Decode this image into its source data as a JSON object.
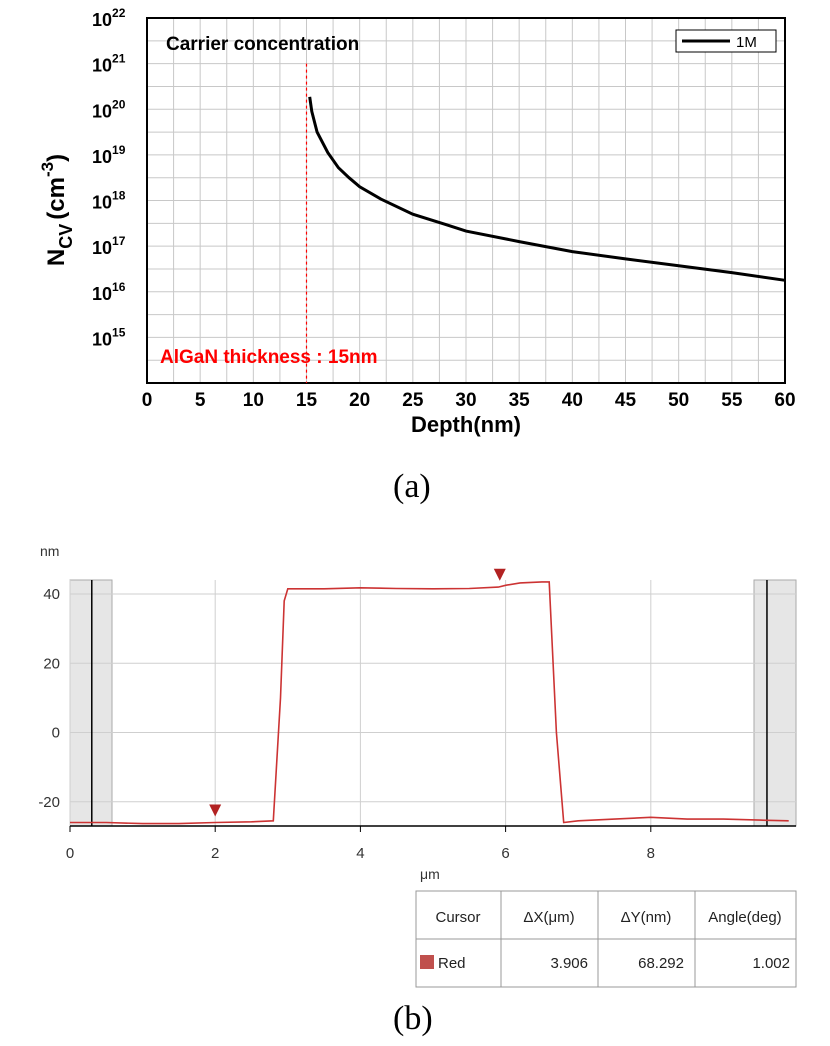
{
  "chart_data": [
    {
      "panel": "(a)",
      "type": "line",
      "title": "Carrier concentration",
      "xlabel": "Depth(nm)",
      "ylabel_main": "N",
      "ylabel_sub": "CV",
      "ylabel_unit": "(cm",
      "ylabel_exp": "-3",
      "ylabel_close": ")",
      "y_scale": "log",
      "xlim": [
        0,
        60
      ],
      "ylim_exp": [
        14,
        22
      ],
      "x_ticks": [
        "0",
        "5",
        "10",
        "15",
        "20",
        "25",
        "30",
        "35",
        "40",
        "45",
        "50",
        "55",
        "60"
      ],
      "y_tick_exponents": [
        "15",
        "16",
        "17",
        "18",
        "19",
        "20",
        "21",
        "22"
      ],
      "y_tick_base": "10",
      "grid": true,
      "legend_position": "top-right",
      "series": [
        {
          "name": "1M",
          "color": "#000000",
          "x": [
            15.3,
            15.5,
            16,
            17,
            18,
            19,
            20,
            22,
            25,
            28,
            30,
            35,
            40,
            45,
            50,
            55,
            60
          ],
          "log10_y": [
            20.27,
            19.95,
            19.5,
            19.05,
            18.72,
            18.5,
            18.3,
            18.03,
            17.7,
            17.48,
            17.33,
            17.1,
            16.88,
            16.72,
            16.57,
            16.42,
            16.25
          ]
        }
      ],
      "annotation": {
        "text": "AlGaN thickness : 15nm",
        "x": 15,
        "color": "#ff0000"
      }
    },
    {
      "panel": "(b)",
      "type": "line",
      "unit_y": "nm",
      "unit_x": "μm",
      "xlim": [
        0,
        10
      ],
      "ylim": [
        -27,
        45
      ],
      "x_ticks": [
        "0",
        "2",
        "4",
        "6",
        "8"
      ],
      "y_ticks": [
        "40",
        "20",
        "0",
        "-20"
      ],
      "grid": true,
      "cursor_lines_x": [
        0.3,
        9.6
      ],
      "cursor_markers_x": [
        2.0,
        5.92
      ],
      "series": [
        {
          "name": "Red",
          "color": "#cc3333",
          "x": [
            0,
            0.5,
            1,
            1.5,
            2,
            2.5,
            2.8,
            2.9,
            2.95,
            3.0,
            3.5,
            4,
            4.5,
            5,
            5.5,
            5.9,
            6.0,
            6.2,
            6.5,
            6.6,
            6.7,
            6.8,
            7,
            7.5,
            8,
            8.5,
            9,
            9.5,
            9.9
          ],
          "y": [
            -26,
            -26,
            -26.3,
            -26.3,
            -26,
            -25.8,
            -25.5,
            10,
            38,
            41.5,
            41.5,
            41.8,
            41.6,
            41.5,
            41.6,
            42,
            42.5,
            43.2,
            43.5,
            43.5,
            0,
            -26,
            -25.5,
            -25,
            -24.5,
            -25,
            -25,
            -25.3,
            -25.5
          ]
        }
      ],
      "table": {
        "headers": [
          "Cursor",
          "ΔX(μm)",
          "ΔY(nm)",
          "Angle(deg)"
        ],
        "rows": [
          {
            "cursor": "Red",
            "dx": "3.906",
            "dy": "68.292",
            "angle": "1.002",
            "swatch": "#c0504d"
          }
        ]
      }
    }
  ],
  "captions": {
    "a": "(a)",
    "b": "(b)"
  }
}
